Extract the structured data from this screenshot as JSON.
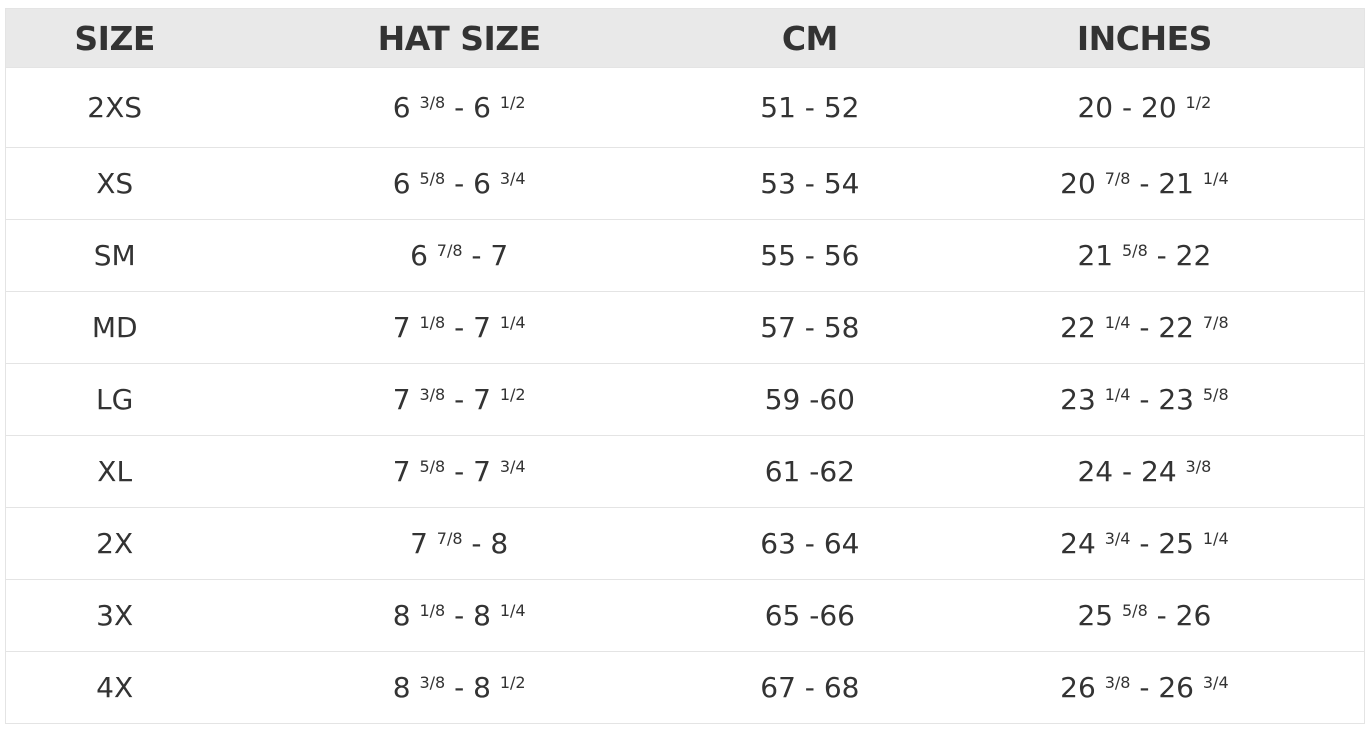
{
  "headers": [
    "SIZE",
    "HAT SIZE",
    "CM",
    "INCHES"
  ],
  "rows": [
    [
      [
        {
          "t": "2XS"
        }
      ],
      [
        {
          "t": "6 "
        },
        {
          "sup": "3/8"
        },
        {
          "t": " - 6 "
        },
        {
          "sup": "1/2"
        }
      ],
      [
        {
          "t": "51 - 52"
        }
      ],
      [
        {
          "t": "20 - 20 "
        },
        {
          "sup": "1/2"
        }
      ]
    ],
    [
      [
        {
          "t": "XS"
        }
      ],
      [
        {
          "t": "6 "
        },
        {
          "sup": "5/8"
        },
        {
          "t": " - 6 "
        },
        {
          "sup": "3/4"
        }
      ],
      [
        {
          "t": "53 - 54"
        }
      ],
      [
        {
          "t": "20 "
        },
        {
          "sup": "7/8"
        },
        {
          "t": " - 21 "
        },
        {
          "sup": "1/4"
        }
      ]
    ],
    [
      [
        {
          "t": "SM"
        }
      ],
      [
        {
          "t": "6 "
        },
        {
          "sup": "7/8"
        },
        {
          "t": " - 7"
        }
      ],
      [
        {
          "t": "55 - 56"
        }
      ],
      [
        {
          "t": "21 "
        },
        {
          "sup": "5/8"
        },
        {
          "t": " - 22"
        }
      ]
    ],
    [
      [
        {
          "t": "MD"
        }
      ],
      [
        {
          "t": "7 "
        },
        {
          "sup": "1/8"
        },
        {
          "t": " - 7 "
        },
        {
          "sup": "1/4"
        }
      ],
      [
        {
          "t": "57 - 58"
        }
      ],
      [
        {
          "t": "22 "
        },
        {
          "sup": "1/4"
        },
        {
          "t": " - 22 "
        },
        {
          "sup": "7/8"
        }
      ]
    ],
    [
      [
        {
          "t": "LG"
        }
      ],
      [
        {
          "t": "7 "
        },
        {
          "sup": "3/8"
        },
        {
          "t": " - 7 "
        },
        {
          "sup": "1/2"
        }
      ],
      [
        {
          "t": "59 -60"
        }
      ],
      [
        {
          "t": "23 "
        },
        {
          "sup": "1/4"
        },
        {
          "t": " - 23 "
        },
        {
          "sup": "5/8"
        }
      ]
    ],
    [
      [
        {
          "t": "XL"
        }
      ],
      [
        {
          "t": "7 "
        },
        {
          "sup": "5/8"
        },
        {
          "t": " - 7 "
        },
        {
          "sup": "3/4"
        }
      ],
      [
        {
          "t": "61 -62"
        }
      ],
      [
        {
          "t": "24 - 24 "
        },
        {
          "sup": "3/8"
        }
      ]
    ],
    [
      [
        {
          "t": "2X"
        }
      ],
      [
        {
          "t": "7 "
        },
        {
          "sup": "7/8"
        },
        {
          "t": " - 8"
        }
      ],
      [
        {
          "t": "63 - 64"
        }
      ],
      [
        {
          "t": "24 "
        },
        {
          "sup": "3/4"
        },
        {
          "t": " - 25 "
        },
        {
          "sup": "1/4"
        }
      ]
    ],
    [
      [
        {
          "t": "3X"
        }
      ],
      [
        {
          "t": "8 "
        },
        {
          "sup": "1/8"
        },
        {
          "t": " - 8 "
        },
        {
          "sup": "1/4"
        }
      ],
      [
        {
          "t": "65 -66"
        }
      ],
      [
        {
          "t": "25 "
        },
        {
          "sup": "5/8"
        },
        {
          "t": " - 26"
        }
      ]
    ],
    [
      [
        {
          "t": "4X"
        }
      ],
      [
        {
          "t": "8 "
        },
        {
          "sup": "3/8"
        },
        {
          "t": " - 8 "
        },
        {
          "sup": "1/2"
        }
      ],
      [
        {
          "t": "67 - 68"
        }
      ],
      [
        {
          "t": "26 "
        },
        {
          "sup": "3/8"
        },
        {
          "t": " - 26 "
        },
        {
          "sup": "3/4"
        }
      ]
    ]
  ]
}
